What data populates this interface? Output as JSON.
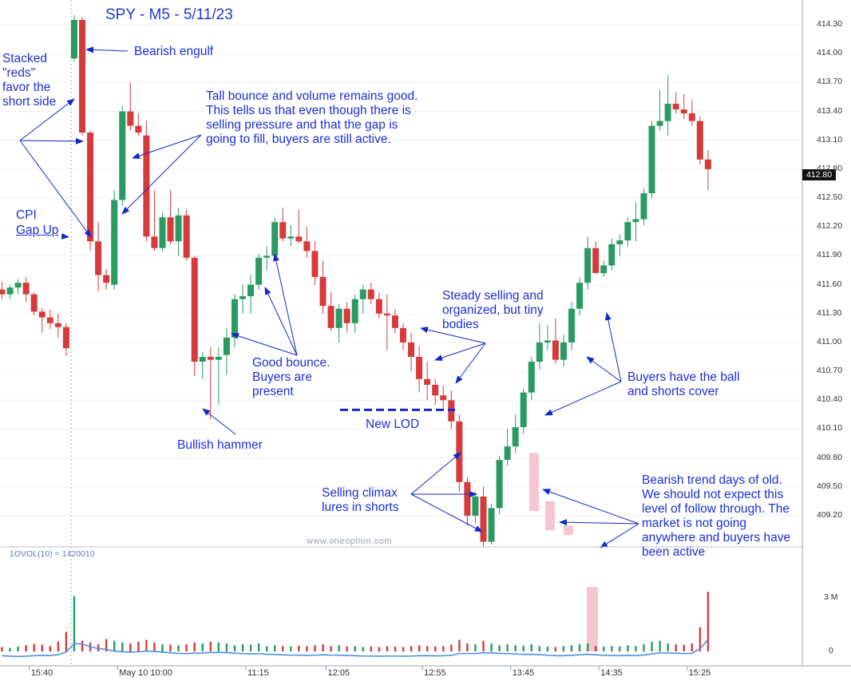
{
  "chart_data": {
    "type": "candlestick",
    "title": "SPY - M5 - 5/11/23",
    "watermark": "www.oneoption.com",
    "volume_indicator_label": "1OVOL(10) = 1420010",
    "price_axis_ticks": [
      "414.30",
      "414.00",
      "413.70",
      "413.40",
      "413.10",
      "412.80",
      "412.50",
      "412.20",
      "411.90",
      "411.60",
      "411.30",
      "411.00",
      "410.70",
      "410.40",
      "410.10",
      "409.80",
      "409.50",
      "409.20"
    ],
    "last_price_label": "412.80",
    "volume_axis_ticks": [
      "3 M",
      "0"
    ],
    "time_axis_ticks": [
      "15:40",
      "May 10 10:00",
      "11:15",
      "12:05",
      "12:55",
      "13:45",
      "14:35",
      "15:25"
    ],
    "price_range": [
      409.0,
      414.45
    ],
    "volume_range_millions": [
      0,
      4.2
    ],
    "colors": {
      "up": "#2a9a62",
      "down": "#d63b3b",
      "annotation": "#1c2fd6",
      "vol_line": "#4a90e2",
      "hypothetical": "#f4c6cf"
    },
    "candles": [
      [
        411.55,
        411.63,
        411.45,
        411.5
      ],
      [
        411.5,
        411.6,
        411.45,
        411.57
      ],
      [
        411.57,
        411.66,
        411.5,
        411.62
      ],
      [
        411.62,
        411.68,
        411.42,
        411.5
      ],
      [
        411.5,
        411.52,
        411.28,
        411.32
      ],
      [
        411.32,
        411.36,
        411.1,
        411.26
      ],
      [
        411.26,
        411.34,
        411.14,
        411.2
      ],
      [
        411.2,
        411.3,
        411.05,
        411.16
      ],
      [
        411.16,
        411.2,
        410.86,
        410.94
      ],
      [
        413.95,
        414.4,
        413.92,
        414.35
      ],
      [
        414.35,
        414.38,
        413.15,
        413.18
      ],
      [
        413.18,
        413.2,
        411.95,
        412.05
      ],
      [
        412.05,
        412.25,
        411.53,
        411.7
      ],
      [
        411.7,
        411.76,
        411.55,
        411.62
      ],
      [
        411.6,
        412.58,
        411.55,
        412.48
      ],
      [
        412.48,
        413.45,
        412.42,
        413.4
      ],
      [
        413.4,
        413.7,
        413.2,
        413.25
      ],
      [
        413.25,
        413.38,
        413.15,
        413.18
      ],
      [
        413.15,
        413.3,
        412.05,
        412.1
      ],
      [
        412.1,
        412.58,
        411.95,
        411.98
      ],
      [
        411.98,
        412.35,
        411.95,
        412.3
      ],
      [
        412.3,
        412.58,
        412.02,
        412.05
      ],
      [
        412.05,
        412.4,
        411.9,
        412.32
      ],
      [
        412.32,
        412.38,
        411.85,
        411.88
      ],
      [
        411.88,
        411.9,
        410.65,
        410.8
      ],
      [
        410.8,
        410.9,
        410.62,
        410.85
      ],
      [
        410.85,
        410.95,
        410.2,
        410.82
      ],
      [
        410.82,
        410.95,
        410.35,
        410.85
      ],
      [
        410.87,
        411.15,
        410.66,
        411.05
      ],
      [
        411.05,
        411.5,
        410.95,
        411.45
      ],
      [
        411.45,
        411.6,
        411.3,
        411.48
      ],
      [
        411.48,
        411.7,
        411.3,
        411.6
      ],
      [
        411.6,
        411.92,
        411.55,
        411.88
      ],
      [
        411.88,
        412.0,
        411.75,
        411.9
      ],
      [
        411.9,
        412.3,
        411.85,
        412.25
      ],
      [
        412.25,
        412.4,
        412.05,
        412.08
      ],
      [
        412.08,
        412.22,
        412.0,
        412.1
      ],
      [
        412.1,
        412.38,
        412.03,
        412.05
      ],
      [
        412.05,
        412.2,
        411.88,
        411.95
      ],
      [
        411.95,
        412.05,
        411.6,
        411.68
      ],
      [
        411.68,
        411.85,
        411.3,
        411.38
      ],
      [
        411.38,
        411.52,
        411.12,
        411.15
      ],
      [
        411.15,
        411.4,
        411.0,
        411.35
      ],
      [
        411.35,
        411.42,
        411.1,
        411.2
      ],
      [
        411.2,
        411.5,
        411.1,
        411.45
      ],
      [
        411.45,
        411.6,
        411.3,
        411.55
      ],
      [
        411.55,
        411.62,
        411.4,
        411.45
      ],
      [
        411.45,
        411.52,
        411.25,
        411.3
      ],
      [
        411.3,
        411.5,
        410.92,
        411.28
      ],
      [
        411.28,
        411.35,
        411.1,
        411.15
      ],
      [
        411.15,
        411.2,
        410.92,
        411.0
      ],
      [
        411.0,
        411.1,
        410.7,
        410.85
      ],
      [
        410.85,
        410.96,
        410.48,
        410.62
      ],
      [
        410.62,
        410.8,
        410.4,
        410.56
      ],
      [
        410.56,
        410.62,
        410.35,
        410.45
      ],
      [
        410.45,
        410.55,
        410.3,
        410.4
      ],
      [
        410.4,
        410.5,
        410.1,
        410.18
      ],
      [
        410.18,
        410.25,
        409.45,
        409.55
      ],
      [
        409.55,
        409.6,
        409.1,
        409.2
      ],
      [
        409.2,
        409.45,
        409.12,
        409.4
      ],
      [
        409.4,
        409.5,
        408.88,
        408.93
      ],
      [
        408.93,
        409.32,
        408.9,
        409.28
      ],
      [
        409.28,
        409.82,
        409.22,
        409.78
      ],
      [
        409.78,
        410.1,
        409.72,
        409.92
      ],
      [
        409.92,
        410.25,
        409.85,
        410.12
      ],
      [
        410.12,
        410.52,
        410.05,
        410.48
      ],
      [
        410.48,
        410.85,
        410.4,
        410.8
      ],
      [
        410.8,
        411.2,
        410.72,
        411.0
      ],
      [
        411.0,
        411.18,
        410.92,
        411.02
      ],
      [
        411.02,
        411.25,
        410.78,
        410.82
      ],
      [
        410.82,
        411.08,
        410.75,
        411.0
      ],
      [
        411.0,
        411.42,
        410.92,
        411.35
      ],
      [
        411.35,
        411.68,
        411.28,
        411.62
      ],
      [
        411.62,
        412.1,
        411.55,
        411.98
      ],
      [
        411.98,
        412.05,
        411.72,
        411.72
      ],
      [
        411.72,
        411.85,
        411.68,
        411.8
      ],
      [
        411.8,
        412.08,
        411.75,
        412.02
      ],
      [
        412.02,
        412.12,
        411.9,
        412.06
      ],
      [
        412.06,
        412.3,
        412.0,
        412.25
      ],
      [
        412.25,
        412.45,
        412.05,
        412.28
      ],
      [
        412.28,
        412.6,
        412.22,
        412.55
      ],
      [
        412.55,
        413.3,
        412.5,
        413.25
      ],
      [
        413.25,
        413.62,
        413.2,
        413.3
      ],
      [
        413.3,
        413.78,
        413.15,
        413.48
      ],
      [
        413.48,
        413.6,
        413.38,
        413.42
      ],
      [
        413.42,
        413.58,
        413.32,
        413.38
      ],
      [
        413.38,
        413.52,
        413.25,
        413.3
      ],
      [
        413.3,
        413.35,
        412.85,
        412.9
      ],
      [
        412.9,
        413.0,
        412.58,
        412.8
      ]
    ],
    "volume_millions": [
      0.25,
      0.2,
      0.28,
      0.35,
      0.42,
      0.38,
      0.3,
      0.55,
      1.1,
      3.1,
      0.6,
      0.5,
      0.4,
      0.7,
      0.6,
      0.5,
      0.45,
      0.55,
      0.65,
      0.5,
      0.4,
      0.38,
      0.35,
      0.4,
      0.5,
      0.45,
      0.55,
      0.5,
      0.45,
      0.35,
      0.4,
      0.38,
      0.45,
      0.3,
      0.35,
      0.3,
      0.28,
      0.32,
      0.3,
      0.35,
      0.4,
      0.3,
      0.35,
      0.28,
      0.3,
      0.25,
      0.28,
      0.25,
      0.3,
      0.28,
      0.25,
      0.3,
      0.35,
      0.3,
      0.28,
      0.3,
      0.38,
      0.65,
      0.45,
      0.4,
      0.6,
      0.45,
      0.35,
      0.4,
      0.35,
      0.32,
      0.4,
      0.3,
      0.28,
      0.25,
      0.3,
      0.35,
      0.4,
      0.45,
      0.3,
      0.28,
      0.3,
      0.28,
      0.35,
      0.3,
      0.4,
      0.55,
      0.6,
      0.45,
      0.4,
      0.38,
      0.45,
      1.35,
      3.35
    ],
    "volume_avg_millions": [
      0.3,
      0.27,
      0.26,
      0.27,
      0.3,
      0.32,
      0.31,
      0.36,
      0.5,
      0.98,
      0.95,
      0.8,
      0.7,
      0.65,
      0.55,
      0.52,
      0.5,
      0.52,
      0.56,
      0.54,
      0.5,
      0.46,
      0.43,
      0.42,
      0.44,
      0.45,
      0.48,
      0.48,
      0.48,
      0.44,
      0.42,
      0.4,
      0.42,
      0.38,
      0.37,
      0.35,
      0.33,
      0.33,
      0.32,
      0.33,
      0.35,
      0.33,
      0.33,
      0.31,
      0.3,
      0.28,
      0.28,
      0.27,
      0.28,
      0.28,
      0.27,
      0.28,
      0.3,
      0.3,
      0.29,
      0.3,
      0.32,
      0.42,
      0.42,
      0.42,
      0.46,
      0.46,
      0.43,
      0.42,
      0.4,
      0.37,
      0.38,
      0.36,
      0.33,
      0.3,
      0.3,
      0.32,
      0.35,
      0.38,
      0.35,
      0.32,
      0.31,
      0.3,
      0.32,
      0.31,
      0.34,
      0.4,
      0.46,
      0.45,
      0.44,
      0.42,
      0.43,
      0.7,
      1.2
    ],
    "hypothetical_boxes": [
      {
        "top": 409.85,
        "bottom": 409.25
      },
      {
        "top": 409.35,
        "bottom": 409.05
      },
      {
        "top": 409.1,
        "bottom": 409.0
      },
      {
        "vol_top_millions": 3.35,
        "vol_bottom_millions": 1.35
      }
    ],
    "new_lod_level": 410.3,
    "annotations": {
      "stacked_reds": "Stacked\n\"reds\"\nfavor the\nshort side",
      "bearish_engulf": "Bearish engulf",
      "tall_bounce": "Tall bounce and volume remains good.\nThis tells us that even though there is\nselling pressure and that the gap is\ngoing to fill, buyers are still active.",
      "cpi_line1": "CPI",
      "cpi_line2": "Gap Up",
      "good_bounce": "Good bounce.\nBuyers are\npresent",
      "bullish_hammer": "Bullish hammer",
      "new_lod": "New LOD",
      "steady_selling": "Steady selling and\norganized, but tiny\nbodies",
      "selling_climax": "Selling climax\nlures in shorts",
      "buyers_have_ball": "Buyers have the ball\nand shorts cover",
      "bearish_trend": "Bearish trend days of old.\nWe should not expect this\nlevel of follow through. The\nmarket is not going\nanywhere and buyers have\nbeen active"
    }
  }
}
